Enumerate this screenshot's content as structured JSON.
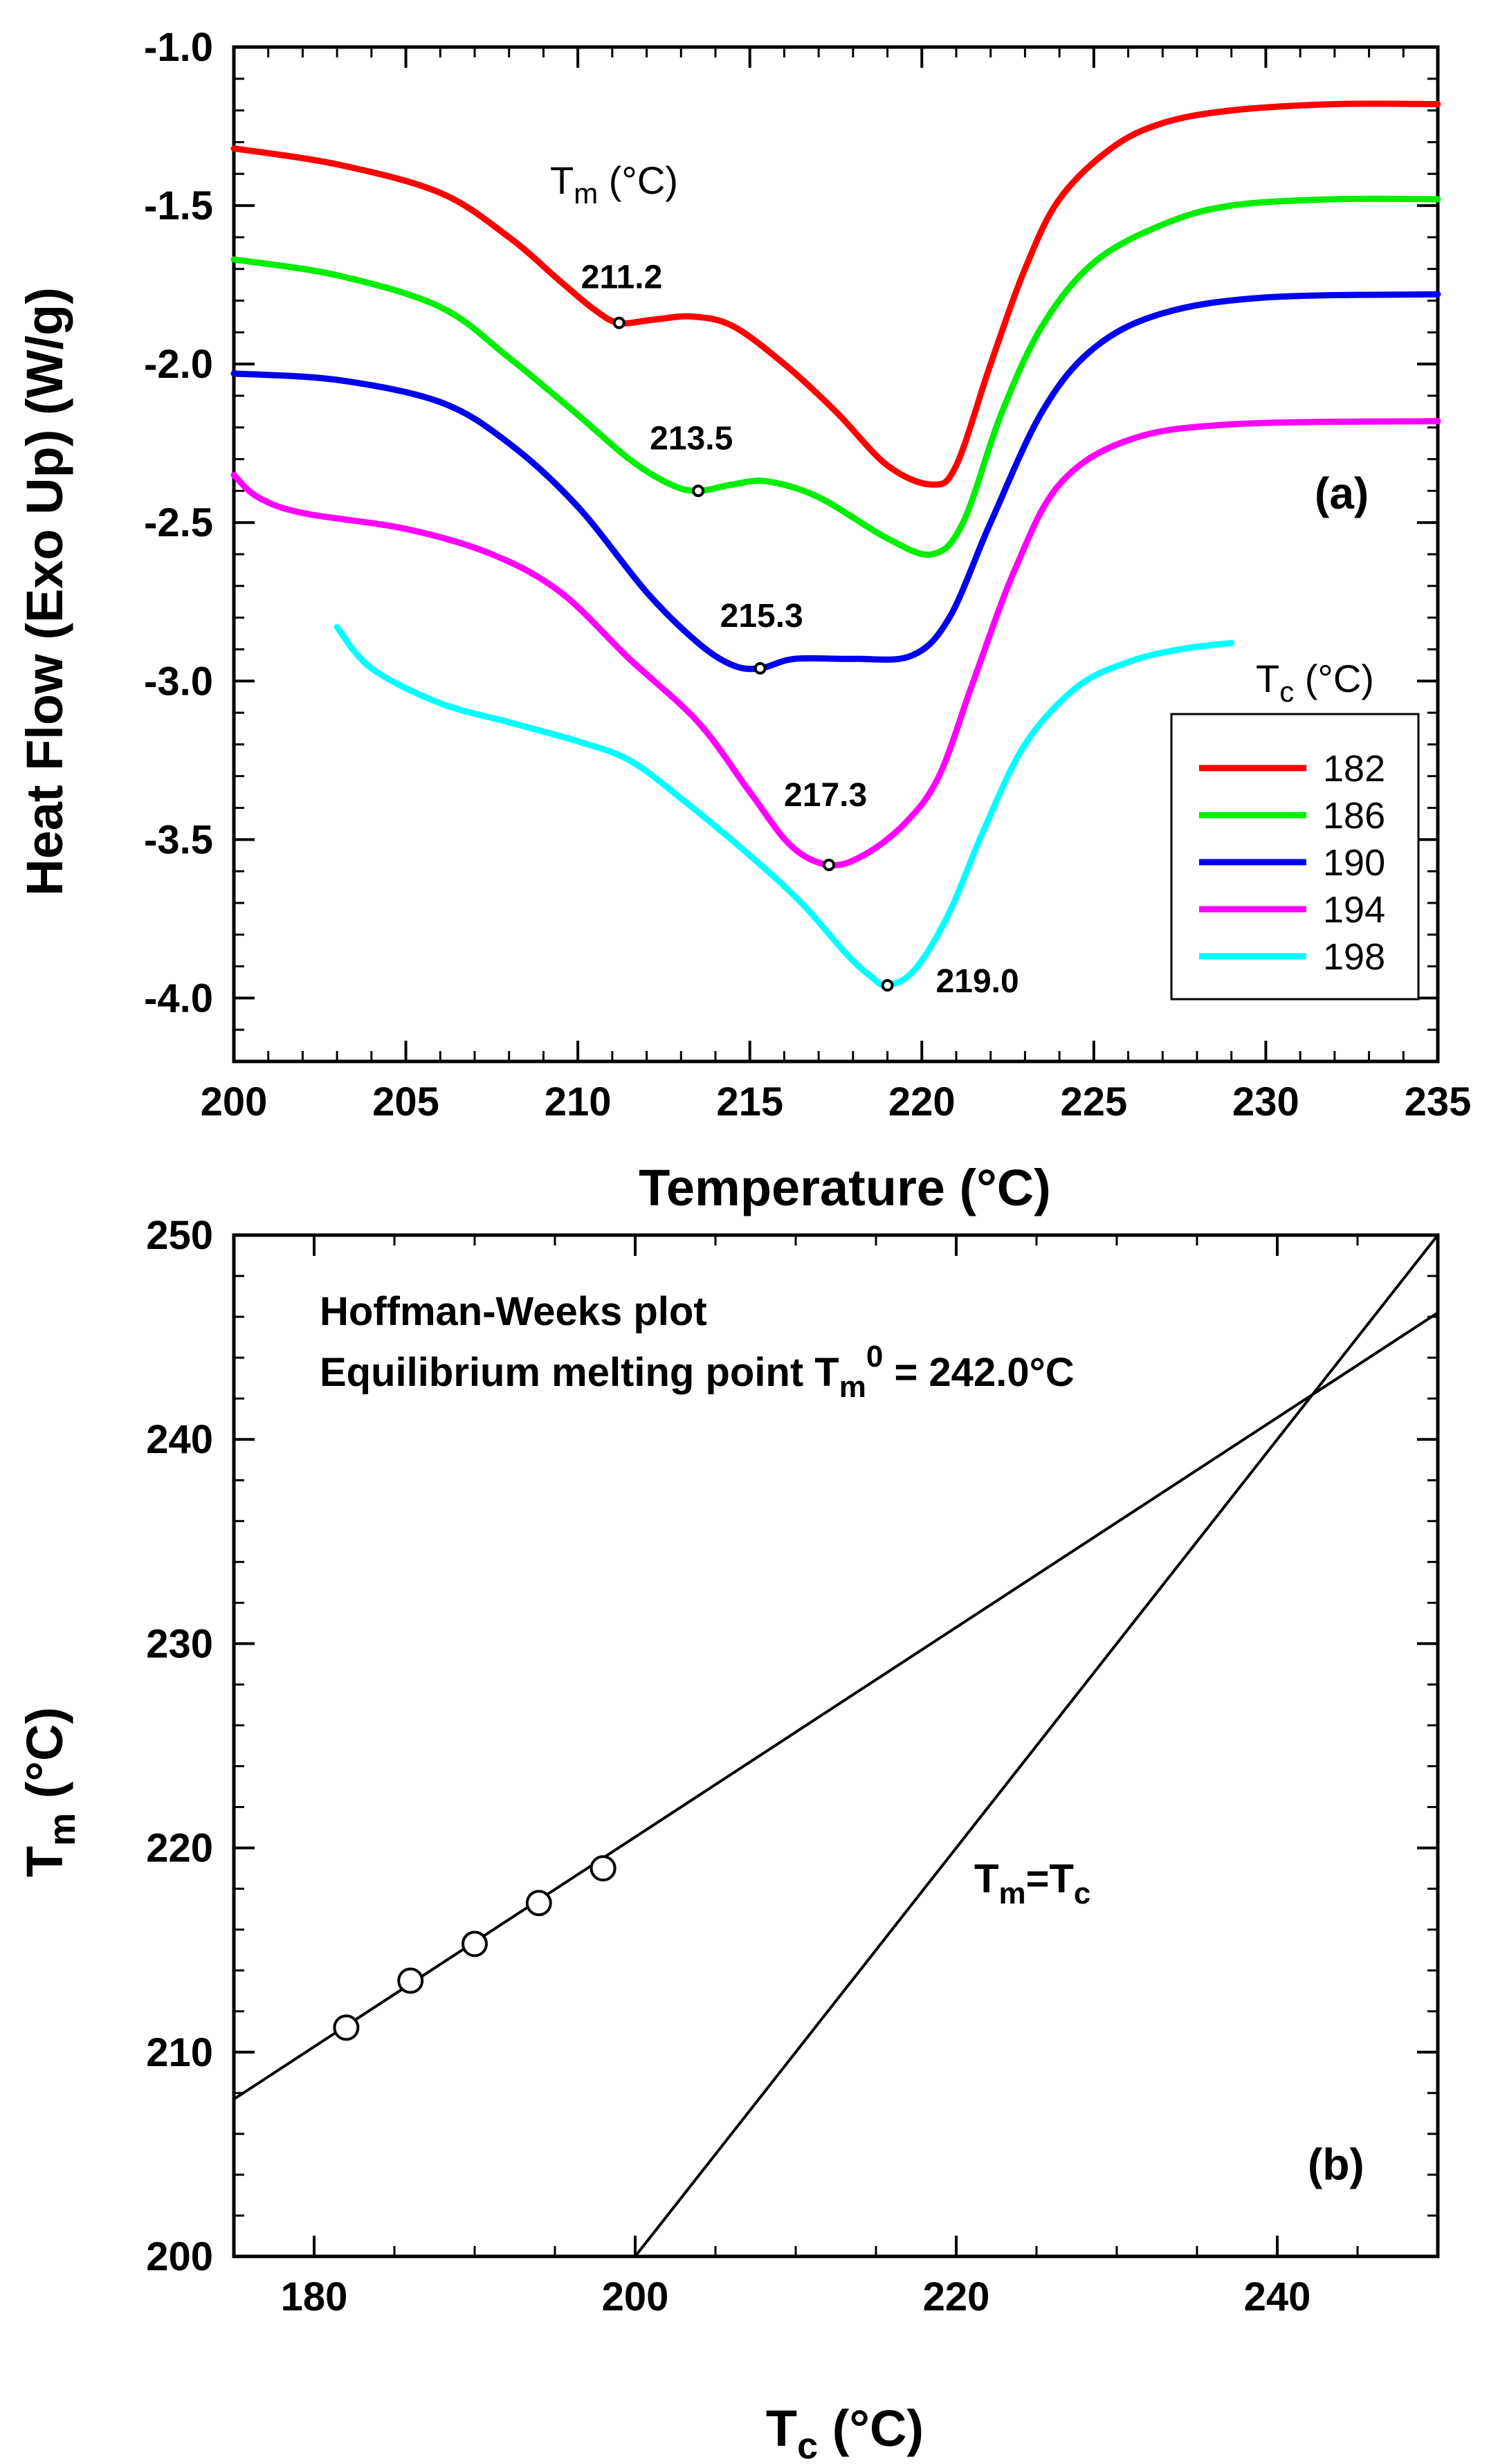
{
  "chart_data": [
    {
      "type": "line",
      "panel_label": "(a)",
      "xlabel": "Temperature (°C)",
      "ylabel": "Heat Flow (Exo Up) (W/g)",
      "xlim": [
        200,
        235
      ],
      "ylim": [
        -4.2,
        -1.0
      ],
      "x_ticks": [
        200,
        205,
        210,
        215,
        220,
        225,
        230,
        235
      ],
      "x_tick_labels": [
        "200",
        "205",
        "210",
        "215",
        "220",
        "225",
        "230",
        "235"
      ],
      "y_ticks": [
        -1.0,
        -1.5,
        -2.0,
        -2.5,
        -3.0,
        -3.5,
        -4.0
      ],
      "y_tick_labels": [
        "-1.0",
        "-1.5",
        "-2.0",
        "-2.5",
        "-3.0",
        "-3.5",
        "-4.0"
      ],
      "tm_header": {
        "main": "T",
        "sub": "m",
        "rest": " (°C)"
      },
      "legend": {
        "title_main": "T",
        "title_sub": "c",
        "title_rest": " (°C)",
        "placement": "lower-right"
      },
      "series": [
        {
          "name": "182",
          "color": "#ff0000",
          "points": [
            [
              200,
              -1.32
            ],
            [
              203,
              -1.37
            ],
            [
              206,
              -1.46
            ],
            [
              208,
              -1.6
            ],
            [
              209.5,
              -1.74
            ],
            [
              210.5,
              -1.83
            ],
            [
              211.2,
              -1.87
            ],
            [
              212.2,
              -1.86
            ],
            [
              213.3,
              -1.85
            ],
            [
              214.5,
              -1.88
            ],
            [
              216,
              -2.0
            ],
            [
              217.5,
              -2.15
            ],
            [
              219,
              -2.32
            ],
            [
              220.3,
              -2.38
            ],
            [
              221,
              -2.32
            ],
            [
              222,
              -2.0
            ],
            [
              223,
              -1.7
            ],
            [
              224,
              -1.48
            ],
            [
              225.5,
              -1.32
            ],
            [
              227,
              -1.24
            ],
            [
              229,
              -1.2
            ],
            [
              232,
              -1.18
            ],
            [
              235,
              -1.18
            ]
          ],
          "peak": {
            "x": 211.2,
            "y": -1.87,
            "label": "211.2"
          }
        },
        {
          "name": "186",
          "color": "#00ee00",
          "points": [
            [
              200,
              -1.67
            ],
            [
              203,
              -1.72
            ],
            [
              206,
              -1.82
            ],
            [
              208,
              -1.98
            ],
            [
              210,
              -2.16
            ],
            [
              211.5,
              -2.3
            ],
            [
              212.7,
              -2.38
            ],
            [
              213.5,
              -2.4
            ],
            [
              214.5,
              -2.38
            ],
            [
              215.5,
              -2.37
            ],
            [
              217,
              -2.42
            ],
            [
              219,
              -2.55
            ],
            [
              220.3,
              -2.6
            ],
            [
              221.2,
              -2.5
            ],
            [
              222.3,
              -2.16
            ],
            [
              223.5,
              -1.88
            ],
            [
              225,
              -1.68
            ],
            [
              227,
              -1.56
            ],
            [
              229,
              -1.5
            ],
            [
              232,
              -1.48
            ],
            [
              235,
              -1.48
            ]
          ],
          "peak": {
            "x": 213.5,
            "y": -2.4,
            "label": "213.5"
          }
        },
        {
          "name": "190",
          "color": "#0000ee",
          "points": [
            [
              200,
              -2.03
            ],
            [
              203,
              -2.05
            ],
            [
              206,
              -2.12
            ],
            [
              208,
              -2.25
            ],
            [
              210,
              -2.45
            ],
            [
              212,
              -2.72
            ],
            [
              213.5,
              -2.88
            ],
            [
              214.5,
              -2.95
            ],
            [
              215.3,
              -2.96
            ],
            [
              216.3,
              -2.93
            ],
            [
              218,
              -2.93
            ],
            [
              219.7,
              -2.92
            ],
            [
              220.8,
              -2.8
            ],
            [
              222,
              -2.5
            ],
            [
              223.5,
              -2.15
            ],
            [
              225,
              -1.95
            ],
            [
              227,
              -1.84
            ],
            [
              230,
              -1.79
            ],
            [
              235,
              -1.78
            ]
          ],
          "peak": {
            "x": 215.3,
            "y": -2.96,
            "label": "215.3"
          }
        },
        {
          "name": "194",
          "color": "#ff00ff",
          "points": [
            [
              200,
              -2.35
            ],
            [
              200.7,
              -2.42
            ],
            [
              202,
              -2.47
            ],
            [
              205,
              -2.52
            ],
            [
              207.5,
              -2.6
            ],
            [
              209.5,
              -2.72
            ],
            [
              211.5,
              -2.93
            ],
            [
              213.5,
              -3.13
            ],
            [
              215,
              -3.35
            ],
            [
              216.2,
              -3.52
            ],
            [
              217.3,
              -3.58
            ],
            [
              218.3,
              -3.55
            ],
            [
              219.5,
              -3.45
            ],
            [
              220.5,
              -3.3
            ],
            [
              221.5,
              -3.0
            ],
            [
              222.7,
              -2.65
            ],
            [
              224,
              -2.38
            ],
            [
              226,
              -2.24
            ],
            [
              229,
              -2.19
            ],
            [
              235,
              -2.18
            ]
          ],
          "peak": {
            "x": 217.3,
            "y": -3.58,
            "label": "217.3"
          }
        },
        {
          "name": "198",
          "color": "#00ffff",
          "points": [
            [
              203,
              -2.83
            ],
            [
              204,
              -2.96
            ],
            [
              206,
              -3.07
            ],
            [
              208,
              -3.13
            ],
            [
              210,
              -3.19
            ],
            [
              211.5,
              -3.25
            ],
            [
              213,
              -3.37
            ],
            [
              215,
              -3.55
            ],
            [
              216.5,
              -3.7
            ],
            [
              217.8,
              -3.86
            ],
            [
              218.5,
              -3.93
            ],
            [
              219,
              -3.96
            ],
            [
              219.8,
              -3.91
            ],
            [
              220.8,
              -3.73
            ],
            [
              221.8,
              -3.47
            ],
            [
              223,
              -3.2
            ],
            [
              224.5,
              -3.02
            ],
            [
              226,
              -2.94
            ],
            [
              227.5,
              -2.9
            ],
            [
              229,
              -2.88
            ]
          ],
          "peak": {
            "x": 219.0,
            "y": -3.96,
            "label": "219.0"
          }
        }
      ]
    },
    {
      "type": "scatter",
      "panel_label": "(b)",
      "xlabel": {
        "main": "T",
        "sub": "c",
        "rest": " (°C)"
      },
      "ylabel": {
        "main": "T",
        "sub": "m",
        "rest": " (°C)"
      },
      "xlim": [
        175,
        250
      ],
      "ylim": [
        200,
        250
      ],
      "x_ticks": [
        180,
        200,
        220,
        240
      ],
      "x_tick_labels": [
        "180",
        "200",
        "220",
        "240"
      ],
      "y_ticks": [
        200,
        210,
        220,
        230,
        240,
        250
      ],
      "y_tick_labels": [
        "200",
        "210",
        "220",
        "230",
        "240",
        "250"
      ],
      "points": [
        {
          "x": 182,
          "y": 211.2
        },
        {
          "x": 186,
          "y": 213.5
        },
        {
          "x": 190,
          "y": 215.3
        },
        {
          "x": 194,
          "y": 217.3
        },
        {
          "x": 198,
          "y": 219.0
        }
      ],
      "fit_line": {
        "x": [
          175,
          250
        ],
        "y": [
          207.7,
          246.2
        ]
      },
      "equality_line": {
        "x": [
          200,
          250
        ],
        "y": [
          200,
          250
        ]
      },
      "equality_label": {
        "t1": "T",
        "s1": "m",
        "eq": "=",
        "t2": "T",
        "s2": "c"
      },
      "annotation": {
        "line1": "Hoffman-Weeks plot",
        "line2_prefix": "Equilibrium melting point  T",
        "line2_sub": "m",
        "line2_sup": "0",
        "line2_suffix": " = 242.0°C"
      }
    }
  ]
}
